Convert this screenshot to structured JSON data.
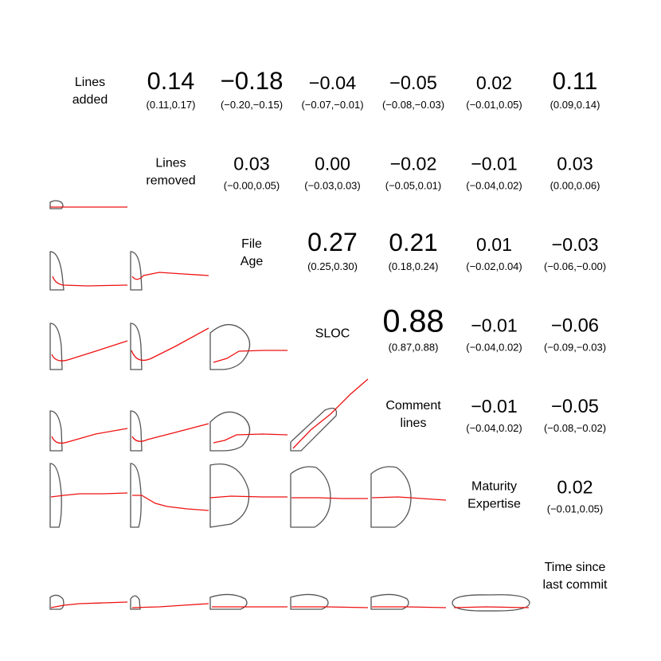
{
  "chart_data": {
    "type": "correlation-matrix",
    "variables": [
      [
        "Lines",
        "added"
      ],
      [
        "Lines",
        "removed"
      ],
      [
        "File",
        "Age"
      ],
      [
        "SLOC"
      ],
      [
        "Comment",
        "lines"
      ],
      [
        "Maturity",
        "Expertise"
      ],
      [
        "Time since",
        "last commit"
      ]
    ],
    "correlations": [
      {
        "row": 0,
        "col": 1,
        "value": "0.14",
        "ci": "(0.11,0.17)"
      },
      {
        "row": 0,
        "col": 2,
        "value": "−0.18",
        "ci": "(−0.20,−0.15)"
      },
      {
        "row": 0,
        "col": 3,
        "value": "−0.04",
        "ci": "(−0.07,−0.01)"
      },
      {
        "row": 0,
        "col": 4,
        "value": "−0.05",
        "ci": "(−0.08,−0.03)"
      },
      {
        "row": 0,
        "col": 5,
        "value": "0.02",
        "ci": "(−0.01,0.05)"
      },
      {
        "row": 0,
        "col": 6,
        "value": "0.11",
        "ci": "(0.09,0.14)"
      },
      {
        "row": 1,
        "col": 2,
        "value": "0.03",
        "ci": "(−0.00,0.05)"
      },
      {
        "row": 1,
        "col": 3,
        "value": "0.00",
        "ci": "(−0.03,0.03)"
      },
      {
        "row": 1,
        "col": 4,
        "value": "−0.02",
        "ci": "(−0.05,0.01)"
      },
      {
        "row": 1,
        "col": 5,
        "value": "−0.01",
        "ci": "(−0.04,0.02)"
      },
      {
        "row": 1,
        "col": 6,
        "value": "0.03",
        "ci": "(0.00,0.06)"
      },
      {
        "row": 2,
        "col": 3,
        "value": "0.27",
        "ci": "(0.25,0.30)"
      },
      {
        "row": 2,
        "col": 4,
        "value": "0.21",
        "ci": "(0.18,0.24)"
      },
      {
        "row": 2,
        "col": 5,
        "value": "0.01",
        "ci": "(−0.02,0.04)"
      },
      {
        "row": 2,
        "col": 6,
        "value": "−0.03",
        "ci": "(−0.06,−0.00)"
      },
      {
        "row": 3,
        "col": 4,
        "value": "0.88",
        "ci": "(0.87,0.88)"
      },
      {
        "row": 3,
        "col": 5,
        "value": "−0.01",
        "ci": "(−0.04,0.02)"
      },
      {
        "row": 3,
        "col": 6,
        "value": "−0.06",
        "ci": "(−0.09,−0.03)"
      },
      {
        "row": 4,
        "col": 5,
        "value": "−0.01",
        "ci": "(−0.04,0.02)"
      },
      {
        "row": 4,
        "col": 6,
        "value": "−0.05",
        "ci": "(−0.08,−0.02)"
      },
      {
        "row": 5,
        "col": 6,
        "value": "0.02",
        "ci": "(−0.01,0.05)"
      }
    ],
    "colors": {
      "ellipse": "#555555",
      "smooth_line": "#ee1111",
      "text": "#000000"
    }
  }
}
